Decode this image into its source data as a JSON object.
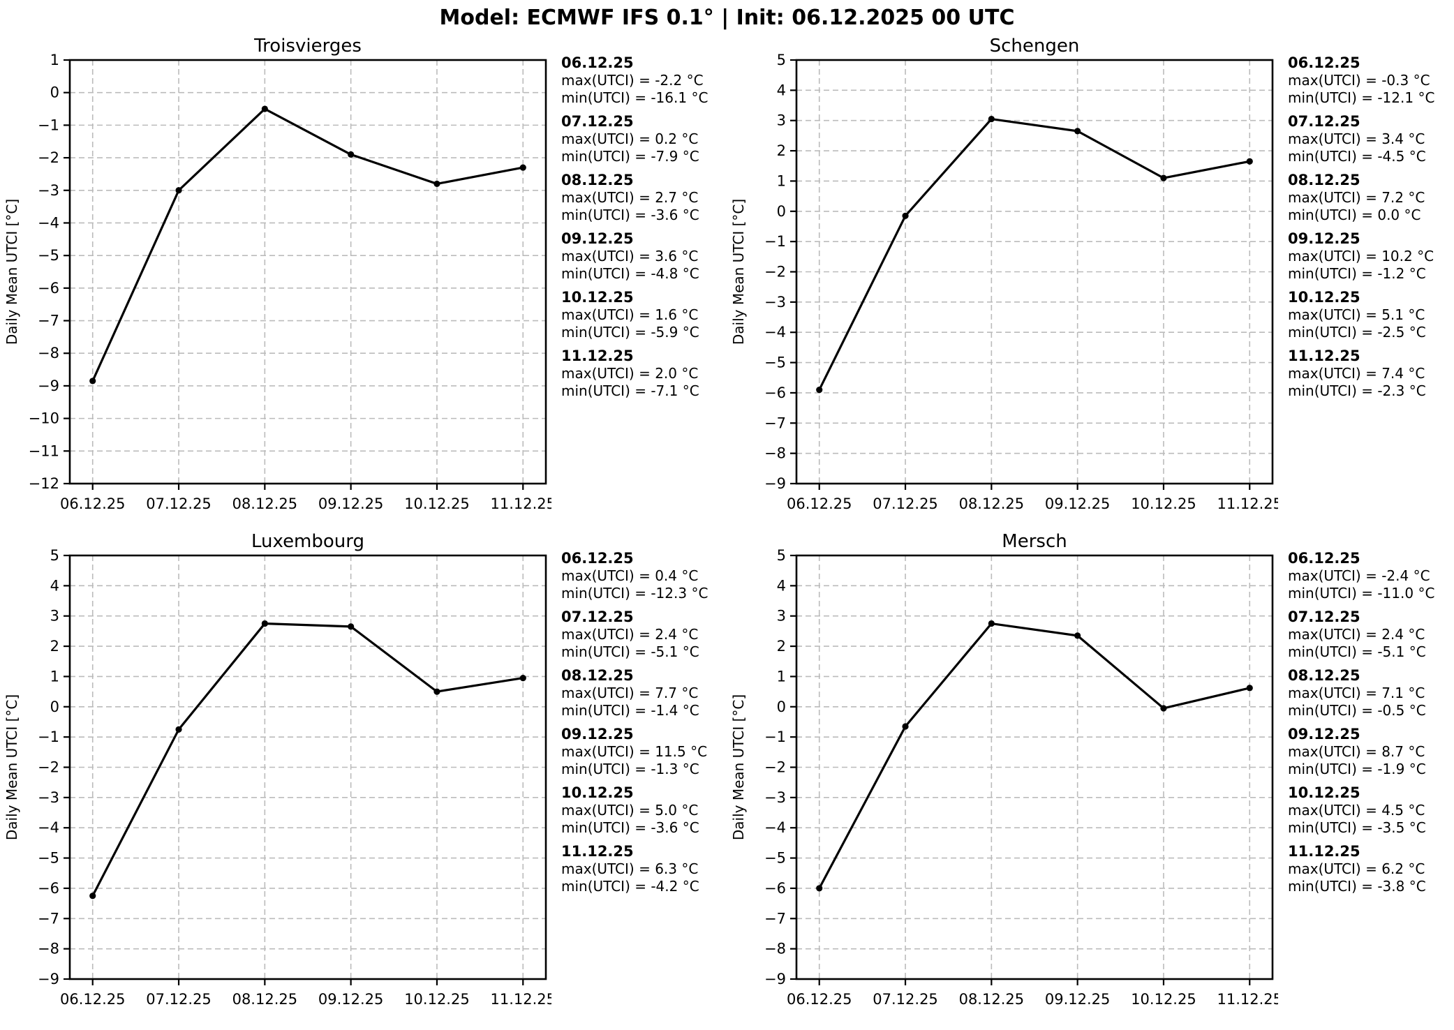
{
  "header": {
    "title": "Model: ECMWF IFS 0.1° | Init: 06.12.2025 00 UTC"
  },
  "labels": {
    "max_prefix": "max(UTCI)",
    "min_prefix": "min(UTCI)",
    "unit": "°C"
  },
  "style": {
    "line_color": "#000000",
    "grid_color": "#bbbbbb",
    "text_color": "#000000"
  },
  "chart_data": [
    {
      "type": "line",
      "title": "Troisvierges",
      "ylabel": "Daily Mean UTCI [°C]",
      "x": [
        "06.12.25",
        "07.12.25",
        "08.12.25",
        "09.12.25",
        "10.12.25",
        "11.12.25"
      ],
      "values": [
        -8.85,
        -3.0,
        -0.5,
        -1.9,
        -2.8,
        -2.3
      ],
      "ylim": [
        -12,
        1
      ],
      "ytick_step": 1,
      "grid": true,
      "legend": "none",
      "annotations": [
        {
          "date": "06.12.25",
          "max": "-2.2",
          "min": "-16.1"
        },
        {
          "date": "07.12.25",
          "max": "0.2",
          "min": "-7.9"
        },
        {
          "date": "08.12.25",
          "max": "2.7",
          "min": "-3.6"
        },
        {
          "date": "09.12.25",
          "max": "3.6",
          "min": "-4.8"
        },
        {
          "date": "10.12.25",
          "max": "1.6",
          "min": "-5.9"
        },
        {
          "date": "11.12.25",
          "max": "2.0",
          "min": "-7.1"
        }
      ]
    },
    {
      "type": "line",
      "title": "Schengen",
      "ylabel": "Daily Mean UTCI [°C]",
      "x": [
        "06.12.25",
        "07.12.25",
        "08.12.25",
        "09.12.25",
        "10.12.25",
        "11.12.25"
      ],
      "values": [
        -5.9,
        -0.15,
        3.05,
        2.65,
        1.1,
        1.65
      ],
      "ylim": [
        -9,
        5
      ],
      "ytick_step": 1,
      "grid": true,
      "legend": "none",
      "annotations": [
        {
          "date": "06.12.25",
          "max": "-0.3",
          "min": "-12.1"
        },
        {
          "date": "07.12.25",
          "max": "3.4",
          "min": "-4.5"
        },
        {
          "date": "08.12.25",
          "max": "7.2",
          "min": "0.0"
        },
        {
          "date": "09.12.25",
          "max": "10.2",
          "min": "-1.2"
        },
        {
          "date": "10.12.25",
          "max": "5.1",
          "min": "-2.5"
        },
        {
          "date": "11.12.25",
          "max": "7.4",
          "min": "-2.3"
        }
      ]
    },
    {
      "type": "line",
      "title": "Luxembourg",
      "ylabel": "Daily Mean UTCI [°C]",
      "x": [
        "06.12.25",
        "07.12.25",
        "08.12.25",
        "09.12.25",
        "10.12.25",
        "11.12.25"
      ],
      "values": [
        -6.25,
        -0.75,
        2.75,
        2.65,
        0.5,
        0.95
      ],
      "ylim": [
        -9,
        5
      ],
      "ytick_step": 1,
      "grid": true,
      "legend": "none",
      "annotations": [
        {
          "date": "06.12.25",
          "max": "0.4",
          "min": "-12.3"
        },
        {
          "date": "07.12.25",
          "max": "2.4",
          "min": "-5.1"
        },
        {
          "date": "08.12.25",
          "max": "7.7",
          "min": "-1.4"
        },
        {
          "date": "09.12.25",
          "max": "11.5",
          "min": "-1.3"
        },
        {
          "date": "10.12.25",
          "max": "5.0",
          "min": "-3.6"
        },
        {
          "date": "11.12.25",
          "max": "6.3",
          "min": "-4.2"
        }
      ]
    },
    {
      "type": "line",
      "title": "Mersch",
      "ylabel": "Daily Mean UTCI [°C]",
      "x": [
        "06.12.25",
        "07.12.25",
        "08.12.25",
        "09.12.25",
        "10.12.25",
        "11.12.25"
      ],
      "values": [
        -6.0,
        -0.65,
        2.75,
        2.35,
        -0.05,
        0.62
      ],
      "ylim": [
        -9,
        5
      ],
      "ytick_step": 1,
      "grid": true,
      "legend": "none",
      "annotations": [
        {
          "date": "06.12.25",
          "max": "-2.4",
          "min": "-11.0"
        },
        {
          "date": "07.12.25",
          "max": "2.4",
          "min": "-5.1"
        },
        {
          "date": "08.12.25",
          "max": "7.1",
          "min": "-0.5"
        },
        {
          "date": "09.12.25",
          "max": "8.7",
          "min": "-1.9"
        },
        {
          "date": "10.12.25",
          "max": "4.5",
          "min": "-3.5"
        },
        {
          "date": "11.12.25",
          "max": "6.2",
          "min": "-3.8"
        }
      ]
    }
  ]
}
